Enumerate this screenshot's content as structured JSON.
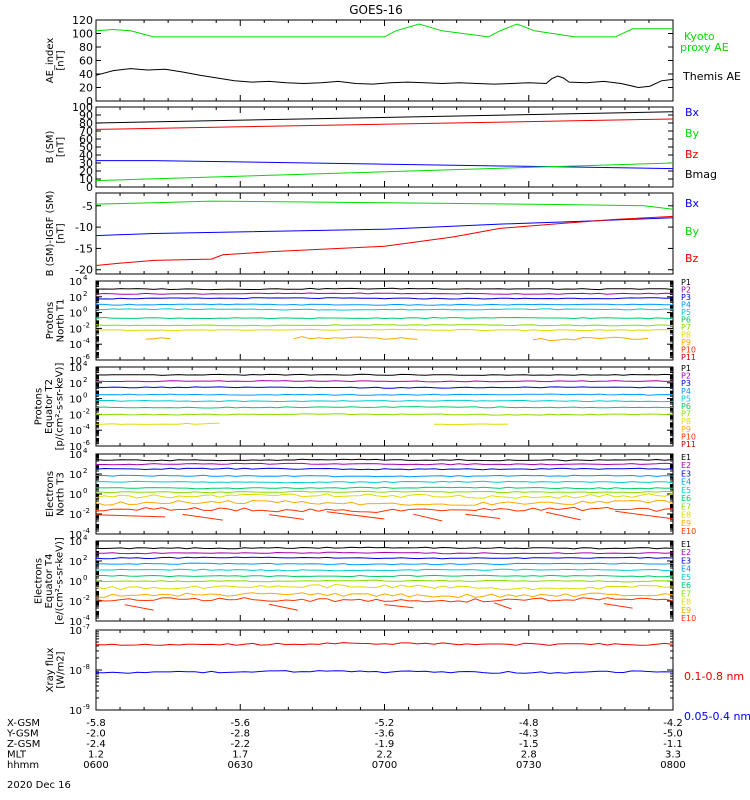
{
  "title": "GOES-16",
  "date": "2020 Dec 16",
  "colors": {
    "black": "#000000",
    "green": "#00dd00",
    "blue": "#0000ff",
    "red": "#ee0000",
    "p_spectrum": [
      "#000000",
      "#aa00aa",
      "#0000dd",
      "#0099ff",
      "#00cccc",
      "#00cc66",
      "#88dd00",
      "#dddd00",
      "#ffaa00",
      "#ff3300",
      "#cc0000"
    ],
    "e_spectrum": [
      "#000000",
      "#aa00aa",
      "#0000dd",
      "#0099ff",
      "#00cccc",
      "#00cc66",
      "#88dd00",
      "#dddd00",
      "#ffaa00",
      "#ff3300"
    ]
  },
  "x_axis": {
    "time_ticks": [
      "0600",
      "0630",
      "0700",
      "0730",
      "0800"
    ],
    "rows": [
      {
        "label": "X-GSM",
        "values": [
          "-5.8",
          "-5.6",
          "-5.2",
          "-4.8",
          "-4.2"
        ]
      },
      {
        "label": "Y-GSM",
        "values": [
          "-2.0",
          "-2.8",
          "-3.6",
          "-4.3",
          "-5.0"
        ]
      },
      {
        "label": "Z-GSM",
        "values": [
          "-2.4",
          "-2.2",
          "-1.9",
          "-1.5",
          "-1.1"
        ]
      },
      {
        "label": "MLT",
        "values": [
          "1.2",
          "1.7",
          "2.2",
          "2.8",
          "3.3"
        ]
      },
      {
        "label": "hhmm",
        "values": [
          "0600",
          "0630",
          "0700",
          "0730",
          "0800"
        ]
      }
    ]
  },
  "chart_data": [
    {
      "type": "line",
      "panel": "ae",
      "ylabel": "AE_index [nT]",
      "ylim": [
        0,
        120
      ],
      "yticks": [
        0,
        20,
        40,
        60,
        80,
        100,
        120
      ],
      "series": [
        {
          "name": "Kyoto proxy AE",
          "label_lines": [
            "Kyoto",
            "proxy AE"
          ],
          "color": "#00dd00",
          "x": [
            0,
            0.03,
            0.06,
            0.1,
            0.5,
            0.52,
            0.56,
            0.6,
            0.68,
            0.7,
            0.73,
            0.76,
            0.83,
            0.9,
            0.93,
            1
          ],
          "y": [
            104,
            106,
            104,
            95,
            95,
            104,
            114,
            104,
            95,
            104,
            114,
            104,
            95,
            95,
            107,
            107
          ]
        },
        {
          "name": "Themis AE",
          "label_lines": [
            "Themis AE"
          ],
          "color": "#000000",
          "x": [
            0,
            0.03,
            0.06,
            0.09,
            0.12,
            0.15,
            0.18,
            0.21,
            0.24,
            0.27,
            0.3,
            0.33,
            0.36,
            0.39,
            0.42,
            0.45,
            0.48,
            0.51,
            0.54,
            0.57,
            0.6,
            0.63,
            0.66,
            0.69,
            0.72,
            0.75,
            0.78,
            0.79,
            0.8,
            0.81,
            0.82,
            0.85,
            0.88,
            0.91,
            0.94,
            0.96,
            0.98,
            1
          ],
          "y": [
            38,
            45,
            48,
            46,
            47,
            43,
            38,
            34,
            30,
            28,
            29,
            27,
            26,
            27,
            29,
            26,
            25,
            27,
            28,
            27,
            26,
            27,
            26,
            25,
            26,
            27,
            26,
            33,
            37,
            34,
            28,
            27,
            29,
            26,
            20,
            22,
            30,
            32
          ]
        }
      ]
    },
    {
      "type": "line",
      "panel": "b_sm",
      "ylabel": "B (SM) [nT]",
      "ylim": [
        0,
        100
      ],
      "yticks": [
        0,
        10,
        20,
        30,
        40,
        50,
        60,
        70,
        80,
        90,
        100
      ],
      "series": [
        {
          "name": "Bx",
          "color": "#0000ff",
          "x": [
            0,
            0.1,
            1
          ],
          "y": [
            33,
            33,
            23
          ]
        },
        {
          "name": "By",
          "color": "#00dd00",
          "x": [
            0,
            1
          ],
          "y": [
            8,
            30
          ]
        },
        {
          "name": "Bz",
          "color": "#ee0000",
          "x": [
            0,
            1
          ],
          "y": [
            72,
            85
          ]
        },
        {
          "name": "Bmag",
          "color": "#000000",
          "x": [
            0,
            1
          ],
          "y": [
            80,
            94
          ]
        }
      ]
    },
    {
      "type": "line",
      "panel": "b_igrf",
      "ylabel": "B (SM)-IGRF (SM) [nT]",
      "ylim": [
        -21,
        -2
      ],
      "yticks": [
        -20,
        -15,
        -10,
        -5
      ],
      "series": [
        {
          "name": "Bx",
          "color": "#0000ff",
          "x": [
            0,
            0.1,
            0.5,
            0.7,
            0.85,
            1
          ],
          "y": [
            -12,
            -11.5,
            -10.5,
            -9.3,
            -8.6,
            -7.8
          ]
        },
        {
          "name": "By",
          "color": "#00dd00",
          "x": [
            0,
            0.1,
            0.2,
            0.5,
            0.8,
            0.95,
            1
          ],
          "y": [
            -4.6,
            -4.3,
            -3.9,
            -4.3,
            -4.7,
            -5,
            -5.8
          ]
        },
        {
          "name": "Bz",
          "color": "#ee0000",
          "x": [
            0,
            0.04,
            0.1,
            0.2,
            0.22,
            0.3,
            0.5,
            0.62,
            0.7,
            0.8,
            0.9,
            1
          ],
          "y": [
            -19,
            -18.5,
            -17.8,
            -17.5,
            -16.5,
            -15.8,
            -14.5,
            -12.3,
            -10.3,
            -9.2,
            -8.2,
            -7.5
          ]
        }
      ]
    },
    {
      "type": "line",
      "panel": "protons_t1",
      "ylabel_lines": [
        "Protons",
        "North T1"
      ],
      "log": true,
      "ylim_exp": [
        -6,
        4
      ],
      "yticks_exp": [
        -6,
        -4,
        -2,
        0,
        2,
        4
      ],
      "series": [
        {
          "name": "P1",
          "color": "#000000",
          "log_y": 3.0
        },
        {
          "name": "P2",
          "color": "#aa00aa",
          "log_y": 2.4
        },
        {
          "name": "P3",
          "color": "#0000dd",
          "log_y": 1.8
        },
        {
          "name": "P4",
          "color": "#0099ff",
          "log_y": 1.0
        },
        {
          "name": "P5",
          "color": "#00cccc",
          "log_y": 0.4
        },
        {
          "name": "P6",
          "color": "#00cc66",
          "log_y": -0.7
        },
        {
          "name": "P7",
          "color": "#88dd00",
          "log_y": -1.6
        },
        {
          "name": "P8",
          "color": "#dddd00",
          "log_y": -2.2
        },
        {
          "name": "P9",
          "color": "#ffaa00",
          "log_y": -3.3
        },
        {
          "name": "P10",
          "color": "#ff3300",
          "log_y": null
        },
        {
          "name": "P11",
          "color": "#cc0000",
          "log_y": null
        }
      ]
    },
    {
      "type": "line",
      "panel": "protons_t2",
      "ylabel_lines": [
        "Protons",
        "Equator T2",
        "[p/(cm²-s-sr-keV)]"
      ],
      "log": true,
      "ylim_exp": [
        -6,
        4
      ],
      "yticks_exp": [
        -6,
        -4,
        -2,
        0,
        2,
        4
      ],
      "series": [
        {
          "name": "P1",
          "color": "#000000",
          "log_y": 3.0
        },
        {
          "name": "P2",
          "color": "#aa00aa",
          "log_y": 2.2
        },
        {
          "name": "P3",
          "color": "#0000dd",
          "log_y": 1.4
        },
        {
          "name": "P4",
          "color": "#0099ff",
          "log_y": 0.5
        },
        {
          "name": "P5",
          "color": "#00cccc",
          "log_y": -0.3
        },
        {
          "name": "P6",
          "color": "#00cc66",
          "log_y": -1.1
        },
        {
          "name": "P7",
          "color": "#88dd00",
          "log_y": -2.0
        },
        {
          "name": "P8",
          "color": "#dddd00",
          "log_y": -3.2
        },
        {
          "name": "P9",
          "color": "#ffaa00",
          "log_y": null
        },
        {
          "name": "P10",
          "color": "#ff3300",
          "log_y": null
        },
        {
          "name": "P11",
          "color": "#cc0000",
          "log_y": null
        }
      ]
    },
    {
      "type": "line",
      "panel": "electrons_t3",
      "ylabel_lines": [
        "Electrons",
        "North T3"
      ],
      "log": true,
      "ylim_exp": [
        -4,
        4
      ],
      "yticks_exp": [
        -4,
        -2,
        0,
        2,
        4
      ],
      "series": [
        {
          "name": "E1",
          "color": "#000000",
          "log_y": 3.4
        },
        {
          "name": "E2",
          "color": "#aa00aa",
          "log_y": 3.0
        },
        {
          "name": "E3",
          "color": "#0000dd",
          "log_y": 2.5
        },
        {
          "name": "E4",
          "color": "#0099ff",
          "log_y": 1.8
        },
        {
          "name": "E5",
          "color": "#00cccc",
          "log_y": 1.2
        },
        {
          "name": "E6",
          "color": "#00cc66",
          "log_y": 0.6
        },
        {
          "name": "E7",
          "color": "#88dd00",
          "log_y": 0.2
        },
        {
          "name": "E8",
          "color": "#dddd00",
          "log_y": -0.2
        },
        {
          "name": "E9",
          "color": "#ffaa00",
          "log_y": -0.9
        },
        {
          "name": "E10",
          "color": "#ff3300",
          "log_y": -1.6
        }
      ]
    },
    {
      "type": "line",
      "panel": "electrons_t4",
      "ylabel_lines": [
        "Electrons",
        "Equator T4",
        "[e/(cm²-s-sr-keV)]"
      ],
      "log": true,
      "ylim_exp": [
        -4,
        4
      ],
      "yticks_exp": [
        -4,
        -2,
        0,
        2,
        4
      ],
      "series": [
        {
          "name": "E1",
          "color": "#000000",
          "log_y": 3.3
        },
        {
          "name": "E2",
          "color": "#aa00aa",
          "log_y": 2.8
        },
        {
          "name": "E3",
          "color": "#0000dd",
          "log_y": 2.3
        },
        {
          "name": "E4",
          "color": "#0099ff",
          "log_y": 1.7
        },
        {
          "name": "E5",
          "color": "#00cccc",
          "log_y": 1.1
        },
        {
          "name": "E6",
          "color": "#00cc66",
          "log_y": 0.5
        },
        {
          "name": "E7",
          "color": "#88dd00",
          "log_y": 0.0
        },
        {
          "name": "E8",
          "color": "#dddd00",
          "log_y": -0.6
        },
        {
          "name": "E9",
          "color": "#ffaa00",
          "log_y": -1.4
        },
        {
          "name": "E10",
          "color": "#ff3300",
          "log_y": -1.9
        }
      ]
    },
    {
      "type": "line",
      "panel": "xray",
      "ylabel_lines": [
        "Xray flux",
        "[W/m2]"
      ],
      "log": true,
      "ylim_exp": [
        -9,
        -7
      ],
      "yticks_exp": [
        -9,
        -8,
        -7
      ],
      "series": [
        {
          "name": "0.1-0.8 nm",
          "color": "#ee0000",
          "log_y": -7.35
        },
        {
          "name": "0.05-0.4 nm",
          "color": "#0000ff",
          "log_y": -8.05
        }
      ]
    }
  ]
}
